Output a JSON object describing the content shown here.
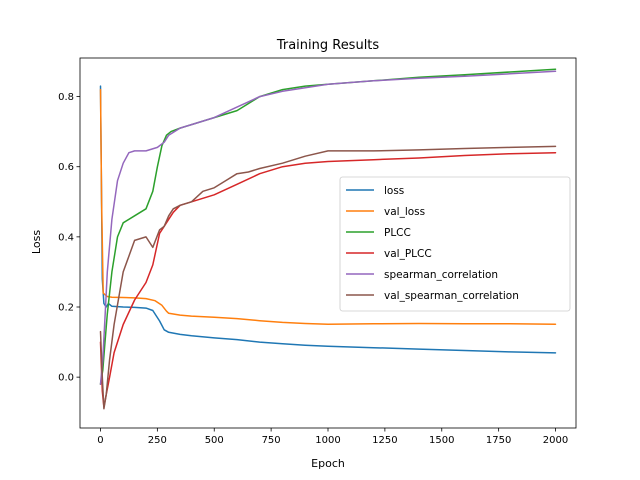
{
  "chart_data": {
    "type": "line",
    "title": "Training Results",
    "xlabel": "Epoch",
    "ylabel": "Loss",
    "xlim": [
      -90,
      2090
    ],
    "ylim": [
      -0.145,
      0.91
    ],
    "xticks": [
      0,
      250,
      500,
      750,
      1000,
      1250,
      1500,
      1750,
      2000
    ],
    "yticks": [
      0.0,
      0.2,
      0.4,
      0.6,
      0.8
    ],
    "ytick_labels": [
      "0.0",
      "0.2",
      "0.4",
      "0.6",
      "0.8"
    ],
    "grid": false,
    "legend_position": "center-right",
    "series": [
      {
        "name": "loss",
        "color": "#1f77b4",
        "x": [
          0,
          8,
          15,
          25,
          35,
          50,
          100,
          150,
          200,
          230,
          260,
          280,
          300,
          350,
          400,
          500,
          600,
          700,
          800,
          900,
          1000,
          1200,
          1400,
          1600,
          1800,
          2000
        ],
        "y": [
          0.83,
          0.28,
          0.21,
          0.2,
          0.21,
          0.202,
          0.2,
          0.199,
          0.197,
          0.19,
          0.16,
          0.135,
          0.128,
          0.122,
          0.118,
          0.112,
          0.107,
          0.1,
          0.095,
          0.091,
          0.088,
          0.084,
          0.08,
          0.076,
          0.072,
          0.069
        ]
      },
      {
        "name": "val_loss",
        "color": "#ff7f0e",
        "x": [
          0,
          5,
          12,
          20,
          30,
          50,
          100,
          150,
          200,
          240,
          270,
          290,
          300,
          350,
          400,
          500,
          600,
          700,
          800,
          900,
          1000,
          1200,
          1400,
          1600,
          1800,
          2000
        ],
        "y": [
          0.82,
          0.5,
          0.24,
          0.235,
          0.23,
          0.228,
          0.227,
          0.226,
          0.224,
          0.218,
          0.205,
          0.188,
          0.182,
          0.177,
          0.174,
          0.171,
          0.167,
          0.161,
          0.156,
          0.153,
          0.151,
          0.152,
          0.153,
          0.152,
          0.152,
          0.151
        ]
      },
      {
        "name": "PLCC",
        "color": "#2ca02c",
        "x": [
          0,
          10,
          20,
          30,
          50,
          75,
          100,
          150,
          200,
          230,
          250,
          270,
          290,
          310,
          350,
          400,
          500,
          600,
          700,
          800,
          900,
          1000,
          1200,
          1400,
          1600,
          1800,
          2000
        ],
        "y": [
          -0.02,
          0.02,
          0.1,
          0.18,
          0.3,
          0.4,
          0.44,
          0.46,
          0.48,
          0.53,
          0.6,
          0.66,
          0.69,
          0.7,
          0.71,
          0.72,
          0.74,
          0.76,
          0.8,
          0.82,
          0.83,
          0.835,
          0.845,
          0.855,
          0.862,
          0.87,
          0.878
        ]
      },
      {
        "name": "val_PLCC",
        "color": "#d62728",
        "x": [
          0,
          8,
          15,
          25,
          40,
          60,
          100,
          150,
          200,
          230,
          260,
          280,
          300,
          320,
          350,
          400,
          500,
          600,
          700,
          800,
          900,
          1000,
          1200,
          1400,
          1600,
          1800,
          2000
        ],
        "y": [
          0.1,
          -0.04,
          -0.085,
          -0.05,
          0.0,
          0.07,
          0.15,
          0.22,
          0.27,
          0.32,
          0.41,
          0.43,
          0.45,
          0.47,
          0.49,
          0.5,
          0.52,
          0.55,
          0.58,
          0.6,
          0.61,
          0.615,
          0.62,
          0.625,
          0.632,
          0.637,
          0.64
        ]
      },
      {
        "name": "spearman_correlation",
        "color": "#9467bd",
        "x": [
          0,
          10,
          20,
          30,
          50,
          75,
          100,
          125,
          150,
          200,
          250,
          280,
          300,
          350,
          400,
          500,
          600,
          700,
          800,
          900,
          1000,
          1200,
          1400,
          1600,
          1800,
          2000
        ],
        "y": [
          -0.02,
          0.05,
          0.17,
          0.3,
          0.45,
          0.56,
          0.61,
          0.64,
          0.645,
          0.645,
          0.655,
          0.67,
          0.69,
          0.71,
          0.72,
          0.74,
          0.77,
          0.8,
          0.815,
          0.825,
          0.835,
          0.845,
          0.852,
          0.858,
          0.865,
          0.872
        ]
      },
      {
        "name": "val_spearman_correlation",
        "color": "#8c564b",
        "x": [
          0,
          8,
          15,
          25,
          40,
          60,
          100,
          150,
          200,
          230,
          260,
          280,
          300,
          320,
          350,
          400,
          450,
          500,
          550,
          600,
          650,
          700,
          800,
          900,
          1000,
          1200,
          1400,
          1600,
          1800,
          2000
        ],
        "y": [
          0.13,
          0.0,
          -0.09,
          -0.05,
          0.05,
          0.15,
          0.3,
          0.39,
          0.4,
          0.37,
          0.42,
          0.43,
          0.46,
          0.48,
          0.49,
          0.5,
          0.53,
          0.54,
          0.56,
          0.58,
          0.585,
          0.595,
          0.61,
          0.63,
          0.645,
          0.645,
          0.648,
          0.652,
          0.655,
          0.658
        ]
      }
    ]
  }
}
